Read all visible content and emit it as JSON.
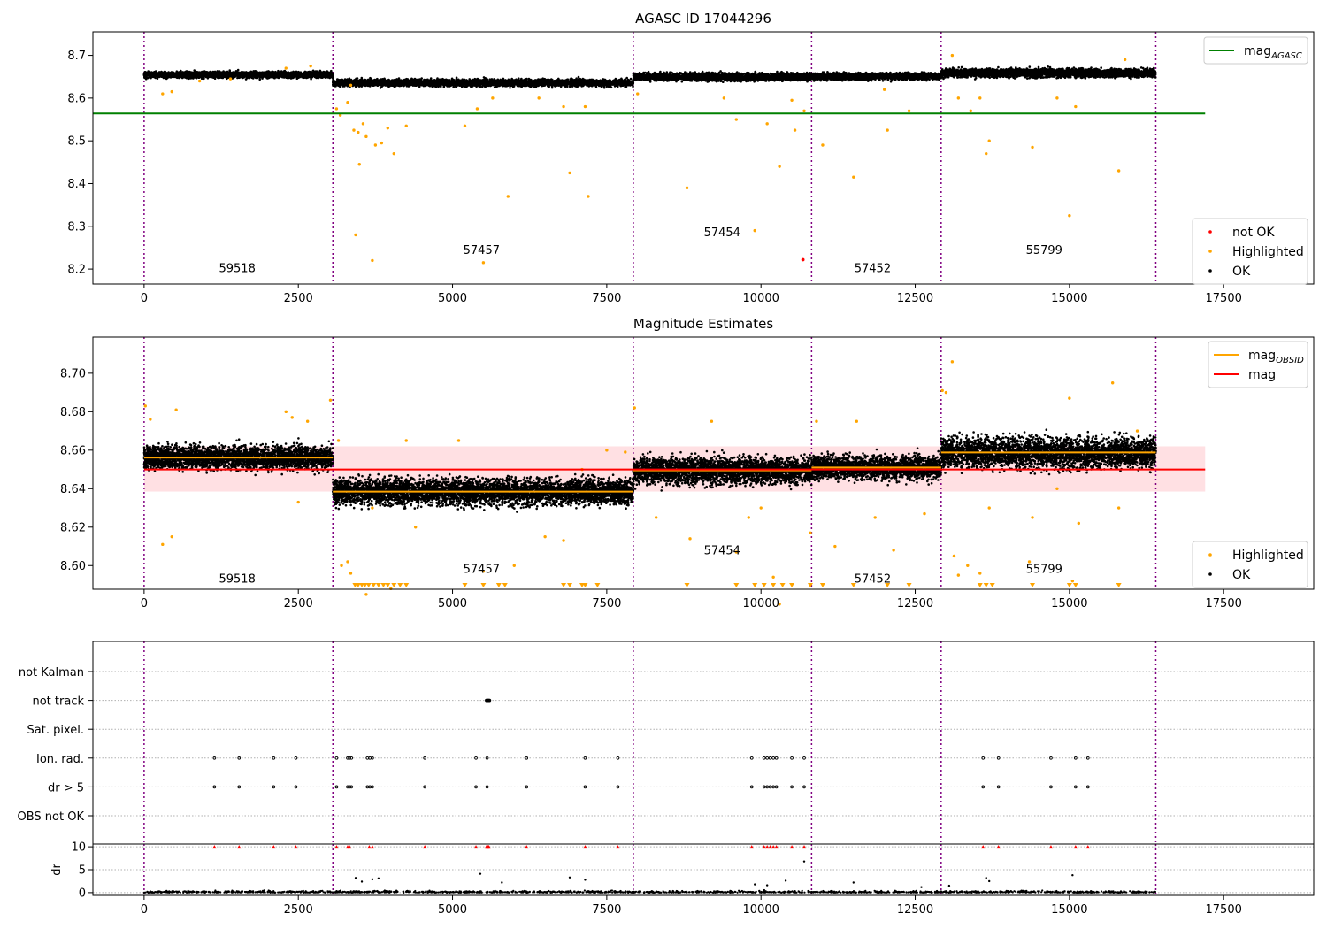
{
  "figure": {
    "background": "#ffffff"
  },
  "colors": {
    "ok": "#000000",
    "highlighted": "#ffa500",
    "not_ok": "#ff0000",
    "agasc_line": "#008000",
    "obsid_line": "#ffa500",
    "mag_line": "#ff0000",
    "mag_band": "#ffe0e3",
    "obsid_divider": "#800080",
    "grid": "#b0b0b0"
  },
  "chart_data": [
    {
      "type": "scatter",
      "title": "AGASC ID 17044296",
      "xlim": [
        -830,
        18960
      ],
      "ylim": [
        8.165,
        8.755
      ],
      "xticks": [
        0,
        2500,
        5000,
        7500,
        10000,
        12500,
        15000,
        17500
      ],
      "xtick_labels": [
        "0",
        "2500",
        "5000",
        "7500",
        "10000",
        "12500",
        "15000",
        "17500"
      ],
      "yticks": [
        8.2,
        8.3,
        8.4,
        8.5,
        8.6,
        8.7
      ],
      "ytick_labels": [
        "8.2",
        "8.3",
        "8.4",
        "8.5",
        "8.6",
        "8.7"
      ],
      "obsid_boundaries": [
        0,
        3060,
        7930,
        10820,
        12920,
        16400
      ],
      "obsids": [
        {
          "label": "59518",
          "x": 1510,
          "y": 8.193
        },
        {
          "label": "57457",
          "x": 5470,
          "y": 8.235
        },
        {
          "label": "57454",
          "x": 9370,
          "y": 8.277
        },
        {
          "label": "57452",
          "x": 11810,
          "y": 8.193
        },
        {
          "label": "55799",
          "x": 14590,
          "y": 8.235
        }
      ],
      "agasc_mag": {
        "value": 8.564,
        "x_range": [
          -830,
          17200
        ]
      },
      "ok_bands": [
        {
          "x": [
            0,
            3060
          ],
          "center": 8.655,
          "spread": 0.009
        },
        {
          "x": [
            3060,
            7930
          ],
          "center": 8.636,
          "spread": 0.01
        },
        {
          "x": [
            7930,
            10820
          ],
          "center": 8.65,
          "spread": 0.011
        },
        {
          "x": [
            10820,
            12920
          ],
          "center": 8.651,
          "spread": 0.01
        },
        {
          "x": [
            12920,
            16400
          ],
          "center": 8.659,
          "spread": 0.012
        }
      ],
      "highlighted_points": [
        [
          300,
          8.61
        ],
        [
          450,
          8.615
        ],
        [
          900,
          8.64
        ],
        [
          1400,
          8.645
        ],
        [
          2300,
          8.67
        ],
        [
          2700,
          8.675
        ],
        [
          3120,
          8.575
        ],
        [
          3180,
          8.56
        ],
        [
          3300,
          8.59
        ],
        [
          3350,
          8.63
        ],
        [
          3400,
          8.525
        ],
        [
          3430,
          8.28
        ],
        [
          3470,
          8.52
        ],
        [
          3490,
          8.445
        ],
        [
          3550,
          8.54
        ],
        [
          3600,
          8.51
        ],
        [
          3700,
          8.22
        ],
        [
          3750,
          8.49
        ],
        [
          3850,
          8.495
        ],
        [
          3950,
          8.53
        ],
        [
          4050,
          8.47
        ],
        [
          4250,
          8.535
        ],
        [
          5200,
          8.535
        ],
        [
          5400,
          8.575
        ],
        [
          5500,
          8.215
        ],
        [
          5650,
          8.6
        ],
        [
          5900,
          8.37
        ],
        [
          6400,
          8.6
        ],
        [
          6800,
          8.58
        ],
        [
          6900,
          8.425
        ],
        [
          7150,
          8.58
        ],
        [
          7200,
          8.37
        ],
        [
          8000,
          8.61
        ],
        [
          8800,
          8.39
        ],
        [
          9400,
          8.6
        ],
        [
          9600,
          8.55
        ],
        [
          9900,
          8.29
        ],
        [
          10100,
          8.54
        ],
        [
          10300,
          8.44
        ],
        [
          10500,
          8.595
        ],
        [
          10550,
          8.525
        ],
        [
          10700,
          8.57
        ],
        [
          11000,
          8.49
        ],
        [
          11500,
          8.415
        ],
        [
          12000,
          8.62
        ],
        [
          12050,
          8.525
        ],
        [
          12400,
          8.57
        ],
        [
          13100,
          8.7
        ],
        [
          13200,
          8.6
        ],
        [
          13400,
          8.57
        ],
        [
          13550,
          8.6
        ],
        [
          13650,
          8.47
        ],
        [
          13700,
          8.5
        ],
        [
          14400,
          8.485
        ],
        [
          14800,
          8.6
        ],
        [
          15000,
          8.325
        ],
        [
          15100,
          8.58
        ],
        [
          15800,
          8.43
        ],
        [
          15900,
          8.69
        ]
      ],
      "not_ok_points": [
        [
          10680,
          8.222
        ]
      ],
      "legend_upper": [
        {
          "label": "mag",
          "sub": "AGASC",
          "kind": "line",
          "color": "#008000"
        }
      ],
      "legend_lower": [
        {
          "label": "not OK",
          "kind": "dot",
          "color": "#ff0000"
        },
        {
          "label": "Highlighted",
          "kind": "dot",
          "color": "#ffa500"
        },
        {
          "label": "OK",
          "kind": "dot",
          "color": "#000000"
        }
      ]
    },
    {
      "type": "scatter",
      "title": "Magnitude Estimates",
      "xlim": [
        -830,
        18960
      ],
      "ylim": [
        8.5877,
        8.7188
      ],
      "xticks": [
        0,
        2500,
        5000,
        7500,
        10000,
        12500,
        15000,
        17500
      ],
      "xtick_labels": [
        "0",
        "2500",
        "5000",
        "7500",
        "10000",
        "12500",
        "15000",
        "17500"
      ],
      "yticks": [
        8.6,
        8.62,
        8.64,
        8.66,
        8.68,
        8.7
      ],
      "ytick_labels": [
        "8.60",
        "8.62",
        "8.64",
        "8.66",
        "8.68",
        "8.70"
      ],
      "obsid_boundaries": [
        0,
        3060,
        7930,
        10820,
        12920,
        16400
      ],
      "obsids": [
        {
          "label": "59518",
          "x": 1510,
          "y": 8.5912
        },
        {
          "label": "57457",
          "x": 5470,
          "y": 8.5962
        },
        {
          "label": "57454",
          "x": 9370,
          "y": 8.6058
        },
        {
          "label": "57452",
          "x": 11810,
          "y": 8.5912
        },
        {
          "label": "55799",
          "x": 14590,
          "y": 8.5962
        }
      ],
      "mag": {
        "value": 8.65,
        "band": [
          8.6385,
          8.662
        ],
        "x_range": [
          0,
          17200
        ]
      },
      "obsid_mags": [
        {
          "x": [
            0,
            3060
          ],
          "value": 8.6562
        },
        {
          "x": [
            3060,
            7930
          ],
          "value": 8.6385
        },
        {
          "x": [
            7930,
            10820
          ],
          "value": 8.6495
        },
        {
          "x": [
            10820,
            12920
          ],
          "value": 8.651
        },
        {
          "x": [
            12920,
            16400
          ],
          "value": 8.6588
        }
      ],
      "ok_bands": [
        {
          "x": [
            0,
            3060
          ],
          "center": 8.6562,
          "spread": 0.0075
        },
        {
          "x": [
            3060,
            7930
          ],
          "center": 8.6385,
          "spread": 0.0085
        },
        {
          "x": [
            7930,
            10820
          ],
          "center": 8.6495,
          "spread": 0.0085
        },
        {
          "x": [
            10820,
            12920
          ],
          "center": 8.651,
          "spread": 0.0075
        },
        {
          "x": [
            12920,
            16400
          ],
          "center": 8.6588,
          "spread": 0.01
        }
      ],
      "highlighted_points": [
        [
          20,
          8.683
        ],
        [
          100,
          8.676
        ],
        [
          300,
          8.611
        ],
        [
          450,
          8.615
        ],
        [
          520,
          8.681
        ],
        [
          2300,
          8.68
        ],
        [
          2400,
          8.677
        ],
        [
          2500,
          8.633
        ],
        [
          2650,
          8.675
        ],
        [
          3020,
          8.686
        ],
        [
          3150,
          8.665
        ],
        [
          3200,
          8.6
        ],
        [
          3300,
          8.602
        ],
        [
          3350,
          8.596
        ],
        [
          3600,
          8.585
        ],
        [
          3700,
          8.63
        ],
        [
          4000,
          8.588
        ],
        [
          4250,
          8.665
        ],
        [
          4400,
          8.62
        ],
        [
          5100,
          8.665
        ],
        [
          5500,
          8.597
        ],
        [
          6000,
          8.6
        ],
        [
          6500,
          8.615
        ],
        [
          6800,
          8.613
        ],
        [
          7100,
          8.65
        ],
        [
          7500,
          8.66
        ],
        [
          7800,
          8.659
        ],
        [
          7950,
          8.682
        ],
        [
          8300,
          8.625
        ],
        [
          8850,
          8.614
        ],
        [
          9200,
          8.675
        ],
        [
          9600,
          8.607
        ],
        [
          9800,
          8.625
        ],
        [
          10000,
          8.63
        ],
        [
          10200,
          8.594
        ],
        [
          10300,
          8.58
        ],
        [
          10800,
          8.617
        ],
        [
          10900,
          8.675
        ],
        [
          11200,
          8.61
        ],
        [
          11550,
          8.675
        ],
        [
          11850,
          8.625
        ],
        [
          12150,
          8.608
        ],
        [
          12650,
          8.627
        ],
        [
          12940,
          8.691
        ],
        [
          13000,
          8.69
        ],
        [
          13100,
          8.706
        ],
        [
          13130,
          8.605
        ],
        [
          13200,
          8.595
        ],
        [
          13350,
          8.6
        ],
        [
          13550,
          8.596
        ],
        [
          13700,
          8.63
        ],
        [
          14350,
          8.602
        ],
        [
          14400,
          8.625
        ],
        [
          14800,
          8.64
        ],
        [
          15000,
          8.687
        ],
        [
          15050,
          8.592
        ],
        [
          15150,
          8.622
        ],
        [
          15700,
          8.695
        ],
        [
          15800,
          8.63
        ],
        [
          16100,
          8.67
        ]
      ],
      "below_markers": [
        3420,
        3470,
        3530,
        3580,
        3640,
        3720,
        3800,
        3880,
        3950,
        4050,
        4150,
        4250,
        5200,
        5500,
        5750,
        5850,
        6800,
        6900,
        7100,
        7150,
        7350,
        8800,
        9600,
        9900,
        10050,
        10200,
        10350,
        10500,
        10800,
        11000,
        11500,
        12050,
        12400,
        13550,
        13650,
        13750,
        14400,
        15000,
        15100,
        15800
      ],
      "legend": [
        {
          "label": "mag",
          "sub": "OBSID",
          "kind": "line",
          "color": "#ffa500"
        },
        {
          "label": "mag",
          "sub": "",
          "kind": "line",
          "color": "#ff0000"
        }
      ],
      "legend_lower": [
        {
          "label": "Highlighted",
          "kind": "dot",
          "color": "#ffa500"
        },
        {
          "label": "OK",
          "kind": "dot",
          "color": "#000000"
        }
      ]
    },
    {
      "type": "scatter",
      "title": "",
      "xlim": [
        -830,
        18960
      ],
      "flag_rows": [
        "not Kalman",
        "not track",
        "Sat. pixel.",
        "Ion. rad.",
        "dr > 5",
        "OBS not OK"
      ],
      "obsid_boundaries": [
        0,
        3060,
        7930,
        10820,
        12920,
        16400
      ],
      "flag_points": {
        "not Kalman": [],
        "not track": [
          5550,
          5560,
          5570,
          5580,
          5590,
          5600
        ],
        "Sat. pixel.": [],
        "Ion. rad.": [
          1140,
          1540,
          2100,
          2460,
          3120,
          3300,
          3330,
          3360,
          3620,
          3660,
          3700,
          4550,
          5380,
          5560,
          6200,
          7150,
          7680,
          9850,
          10050,
          10100,
          10150,
          10200,
          10250,
          10500,
          10700,
          13600,
          13850,
          14700,
          15100,
          15300
        ],
        "dr > 5": [
          1140,
          1540,
          2100,
          2460,
          3120,
          3300,
          3330,
          3360,
          3620,
          3660,
          3700,
          4550,
          5380,
          5560,
          6200,
          7150,
          7680,
          9850,
          10050,
          10100,
          10150,
          10200,
          10250,
          10500,
          10700,
          13600,
          13850,
          14700,
          15100,
          15300
        ],
        "OBS not OK": []
      },
      "dr": {
        "ylim": [
          -0.6,
          10.6
        ],
        "yticks": [
          0,
          5,
          10
        ],
        "ytick_labels": [
          "0",
          "5",
          "10"
        ],
        "ylabel": "dr",
        "clipped_points": [
          1140,
          1540,
          2100,
          2460,
          3120,
          3300,
          3330,
          3650,
          3700,
          4550,
          5380,
          5550,
          5560,
          5570,
          5580,
          5590,
          6200,
          7150,
          7680,
          9850,
          10050,
          10100,
          10150,
          10200,
          10250,
          10500,
          10700,
          13600,
          13850,
          14700,
          15100,
          15300
        ],
        "outliers": [
          [
            3430,
            3.2
          ],
          [
            3530,
            2.4
          ],
          [
            3700,
            2.9
          ],
          [
            3800,
            3.1
          ],
          [
            5450,
            4.1
          ],
          [
            5800,
            2.2
          ],
          [
            6900,
            3.3
          ],
          [
            7150,
            2.8
          ],
          [
            9900,
            1.8
          ],
          [
            10100,
            1.6
          ],
          [
            10400,
            2.6
          ],
          [
            10700,
            6.8
          ],
          [
            11500,
            2.2
          ],
          [
            12600,
            1.2
          ],
          [
            13050,
            1.5
          ],
          [
            13650,
            3.2
          ],
          [
            13700,
            2.5
          ],
          [
            15050,
            3.8
          ]
        ]
      },
      "xticks": [
        0,
        2500,
        5000,
        7500,
        10000,
        12500,
        15000,
        17500
      ],
      "xtick_labels": [
        "0",
        "2500",
        "5000",
        "7500",
        "10000",
        "12500",
        "15000",
        "17500"
      ]
    }
  ]
}
